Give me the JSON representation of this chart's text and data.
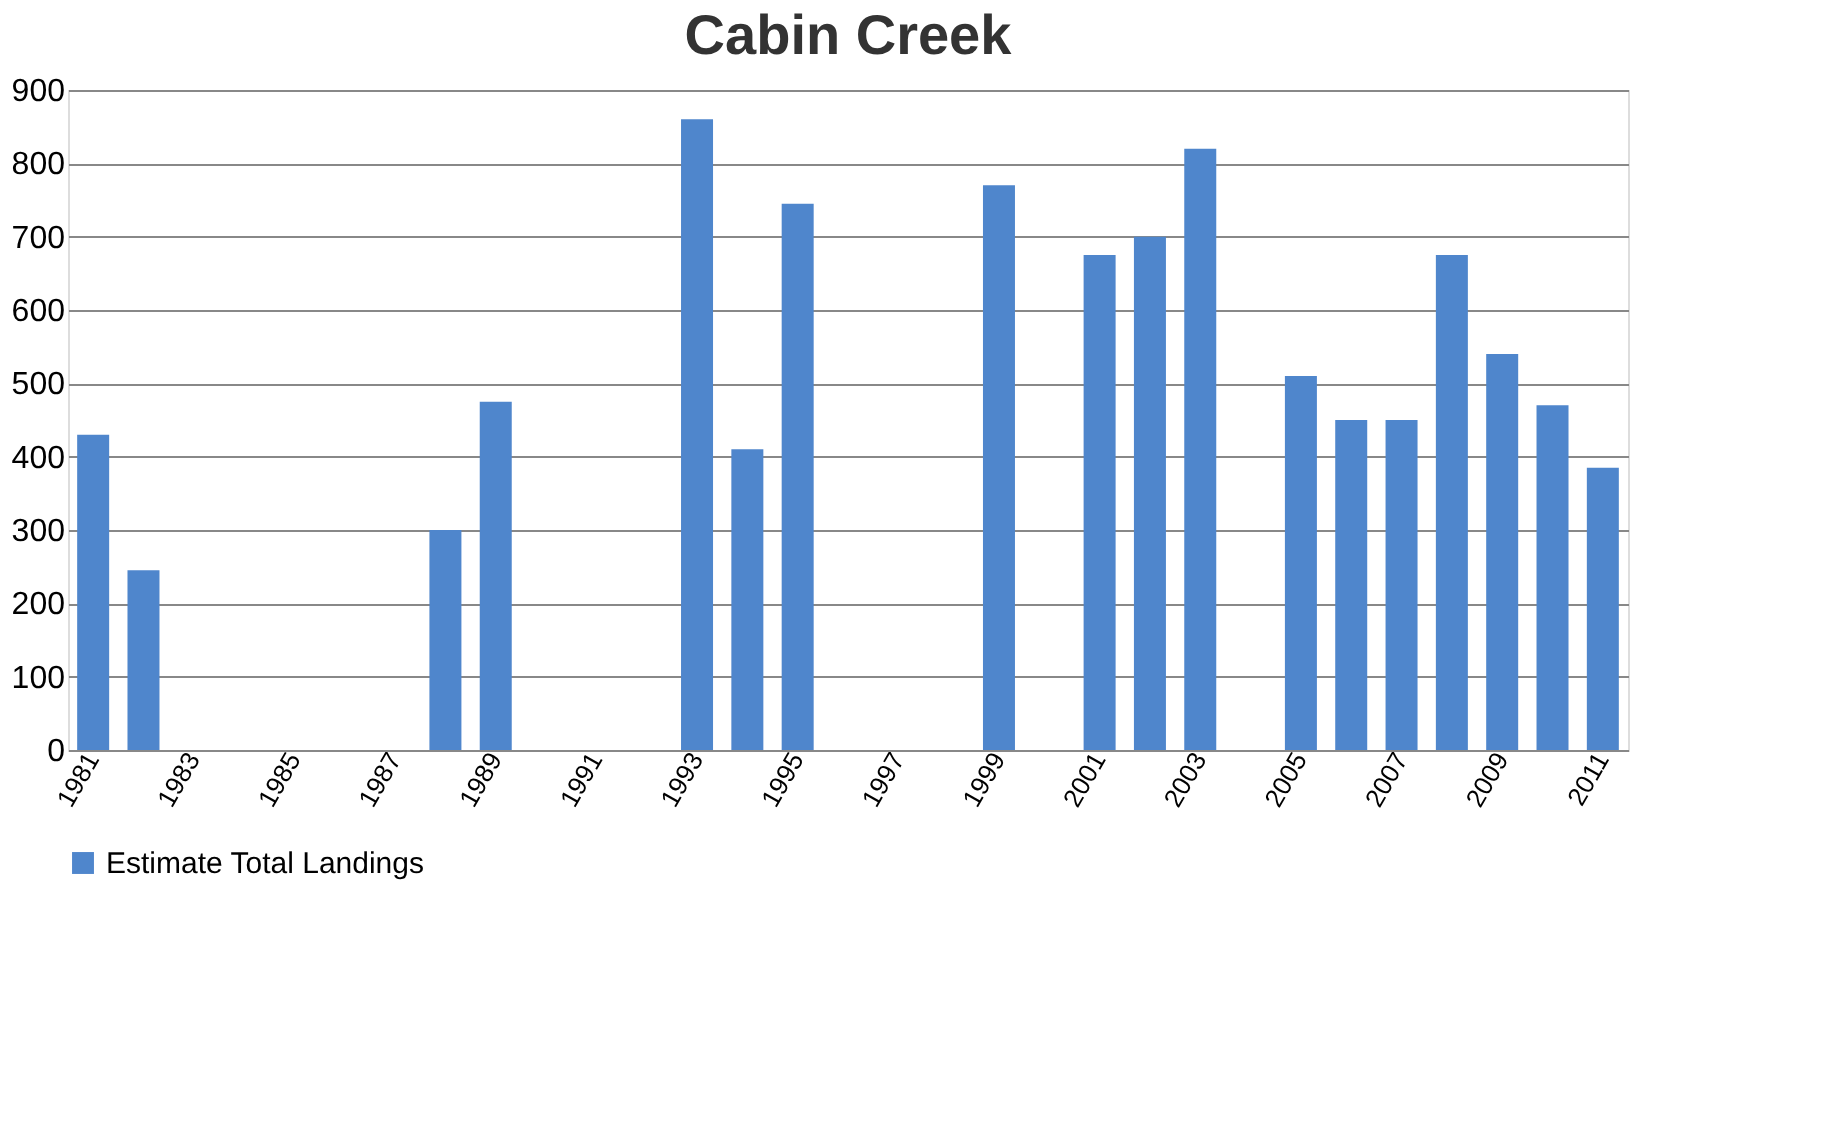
{
  "chart_data": {
    "type": "bar",
    "title": "Cabin Creek",
    "categories": [
      "1981",
      null,
      "1983",
      null,
      "1985",
      null,
      "1987",
      null,
      "1989",
      null,
      "1991",
      null,
      "1993",
      null,
      "1995",
      null,
      "1997",
      null,
      "1999",
      null,
      "2001",
      null,
      "2003",
      null,
      "2005",
      null,
      "2007",
      null,
      "2009",
      null,
      "2011"
    ],
    "series": [
      {
        "name": "Estimate Total Landings",
        "color": "#4f86cc",
        "values": [
          430,
          245,
          null,
          null,
          null,
          null,
          null,
          300,
          475,
          null,
          null,
          null,
          860,
          410,
          745,
          null,
          null,
          null,
          770,
          null,
          675,
          700,
          820,
          null,
          510,
          450,
          450,
          675,
          540,
          470,
          385
        ]
      }
    ],
    "ylim": [
      0,
      900
    ],
    "yticks": [
      0,
      100,
      200,
      300,
      400,
      500,
      600,
      700,
      800,
      900
    ],
    "grid": "y",
    "legend": "bottom"
  }
}
